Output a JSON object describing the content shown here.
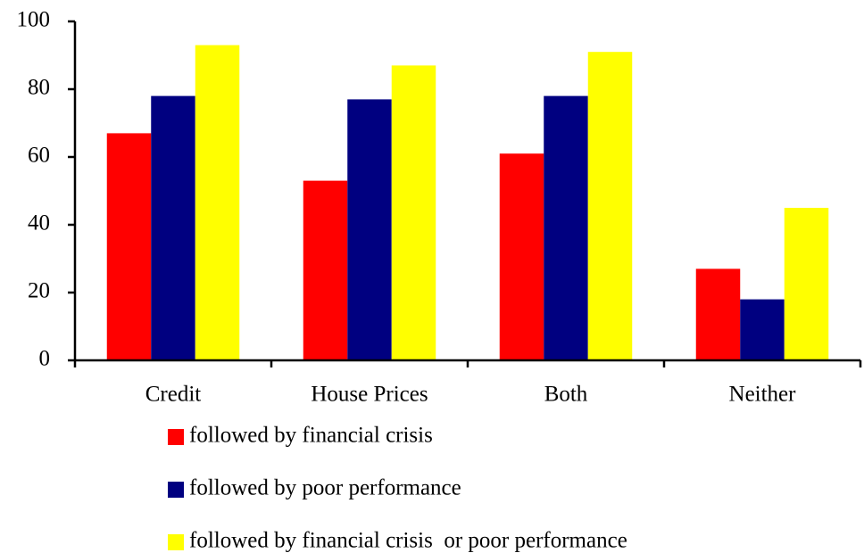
{
  "chart_data": {
    "type": "bar",
    "categories": [
      "Credit",
      "House Prices",
      "Both",
      "Neither"
    ],
    "series": [
      {
        "name": "followed by financial crisis",
        "color": "#ff0000",
        "values": [
          67,
          53,
          61,
          27
        ]
      },
      {
        "name": "followed by poor performance",
        "color": "#000080",
        "values": [
          78,
          77,
          78,
          18
        ]
      },
      {
        "name": "followed by financial crisis  or poor performance",
        "color": "#ffff00",
        "values": [
          93,
          87,
          91,
          45
        ]
      }
    ],
    "ylim": [
      0,
      100
    ],
    "yticks": [
      0,
      20,
      40,
      60,
      80,
      100
    ],
    "grid": false,
    "legend": "bottom"
  }
}
